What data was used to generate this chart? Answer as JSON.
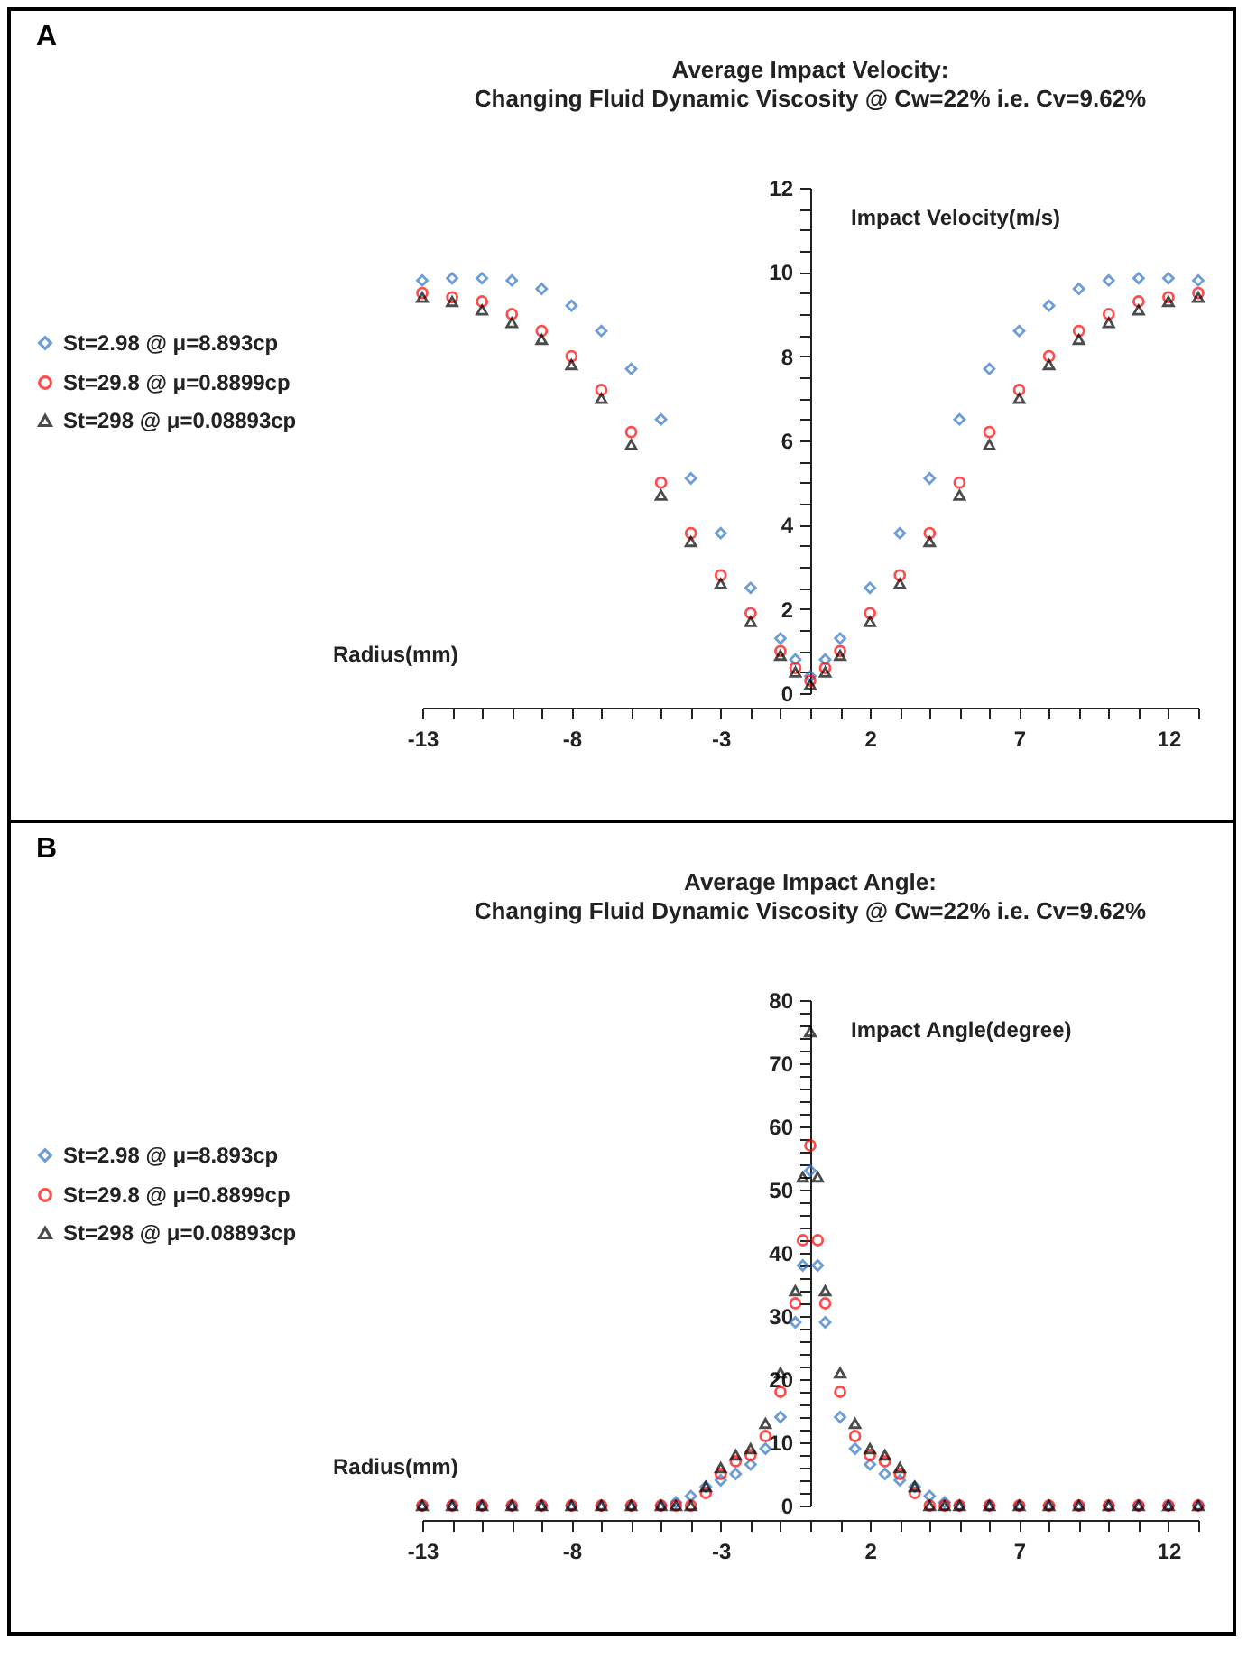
{
  "chart_data": [
    {
      "type": "scatter",
      "title": "Average Impact Velocity:",
      "subtitle": "Changing Fluid Dynamic Viscosity @ Cw=22% i.e. Cv=9.62%",
      "xlabel": "Radius(mm)",
      "ylabel": "Impact Velocity(m/s)",
      "annotations": [
        "A"
      ],
      "legend": "left",
      "x": [
        -13,
        -12,
        -11,
        -10,
        -9,
        -8,
        -7,
        -6,
        -5,
        -4,
        -3,
        -2,
        -1,
        -0.5,
        0,
        0.5,
        1,
        2,
        3,
        4,
        5,
        6,
        7,
        8,
        9,
        10,
        11,
        12,
        13
      ],
      "xlim": [
        -13,
        13
      ],
      "ylim": [
        0,
        12
      ],
      "xticks": [
        -13,
        {
          "value": -12,
          "label": null
        },
        {
          "value": -11,
          "label": null
        },
        {
          "value": -10,
          "label": null
        },
        {
          "value": -9,
          "label": null
        },
        -8,
        {
          "value": -7,
          "label": null
        },
        {
          "value": -6,
          "label": null
        },
        {
          "value": -5,
          "label": null
        },
        {
          "value": -4,
          "label": null
        },
        -3,
        {
          "value": -2,
          "label": null
        },
        {
          "value": -1,
          "label": null
        },
        {
          "value": 0,
          "label": null
        },
        {
          "value": 1,
          "label": null
        },
        2,
        {
          "value": 3,
          "label": null
        },
        {
          "value": 4,
          "label": null
        },
        {
          "value": 5,
          "label": null
        },
        {
          "value": 6,
          "label": null
        },
        7,
        {
          "value": 8,
          "label": null
        },
        {
          "value": 9,
          "label": null
        },
        {
          "value": 10,
          "label": null
        },
        {
          "value": 11,
          "label": null
        },
        12,
        {
          "value": 13,
          "label": null
        }
      ],
      "yticks": [
        0,
        {
          "value": 0.5,
          "label": null
        },
        {
          "value": 1,
          "label": null
        },
        {
          "value": 1.5,
          "label": null
        },
        2,
        {
          "value": 2.5,
          "label": null
        },
        {
          "value": 3,
          "label": null
        },
        {
          "value": 3.5,
          "label": null
        },
        4,
        {
          "value": 4.5,
          "label": null
        },
        {
          "value": 5,
          "label": null
        },
        {
          "value": 5.5,
          "label": null
        },
        6,
        {
          "value": 6.5,
          "label": null
        },
        {
          "value": 7,
          "label": null
        },
        {
          "value": 7.5,
          "label": null
        },
        8,
        {
          "value": 8.5,
          "label": null
        },
        {
          "value": 9,
          "label": null
        },
        {
          "value": 9.5,
          "label": null
        },
        10,
        {
          "value": 10.5,
          "label": null
        },
        {
          "value": 11,
          "label": null
        },
        {
          "value": 11.5,
          "label": null
        },
        12
      ],
      "series": [
        {
          "name": "St=2.98 @ μ=8.893cp",
          "color": "#2e75c6",
          "marker": "diamond",
          "values": [
            9.8,
            9.85,
            9.85,
            9.8,
            9.6,
            9.2,
            8.6,
            7.7,
            6.5,
            5.1,
            3.8,
            2.5,
            1.3,
            0.8,
            0.4,
            0.8,
            1.3,
            2.5,
            3.8,
            5.1,
            6.5,
            7.7,
            8.6,
            9.2,
            9.6,
            9.8,
            9.85,
            9.85,
            9.8
          ]
        },
        {
          "name": "St=29.8 @ μ=0.8899cp",
          "color": "#ff0000",
          "marker": "circle",
          "values": [
            9.5,
            9.4,
            9.3,
            9.0,
            8.6,
            8.0,
            7.2,
            6.2,
            5.0,
            3.8,
            2.8,
            1.9,
            1.0,
            0.6,
            0.3,
            0.6,
            1.0,
            1.9,
            2.8,
            3.8,
            5.0,
            6.2,
            7.2,
            8.0,
            8.6,
            9.0,
            9.3,
            9.4,
            9.5
          ]
        },
        {
          "name": "St=298 @ μ=0.08893cp",
          "color": "#000000",
          "marker": "triangle",
          "values": [
            9.4,
            9.3,
            9.1,
            8.8,
            8.4,
            7.8,
            7.0,
            5.9,
            4.7,
            3.6,
            2.6,
            1.7,
            0.9,
            0.5,
            0.2,
            0.5,
            0.9,
            1.7,
            2.6,
            3.6,
            4.7,
            5.9,
            7.0,
            7.8,
            8.4,
            8.8,
            9.1,
            9.3,
            9.4
          ]
        }
      ]
    },
    {
      "type": "scatter",
      "title": "Average Impact Angle:",
      "subtitle": "Changing Fluid Dynamic Viscosity @ Cw=22% i.e. Cv=9.62%",
      "xlabel": "Radius(mm)",
      "ylabel": "Impact Angle(degree)",
      "annotations": [
        "B"
      ],
      "legend": "left",
      "x": [
        -13,
        -12,
        -11,
        -10,
        -9,
        -8,
        -7,
        -6,
        -5,
        -4.5,
        -4,
        -3.5,
        -3,
        -2.5,
        -2,
        -1.5,
        -1,
        -0.5,
        -0.25,
        0,
        0.25,
        0.5,
        1,
        1.5,
        2,
        2.5,
        3,
        3.5,
        4,
        4.5,
        5,
        6,
        7,
        8,
        9,
        10,
        11,
        12,
        13
      ],
      "xlim": [
        -13,
        13
      ],
      "ylim": [
        0,
        80
      ],
      "xticks": [
        -13,
        {
          "value": -12,
          "label": null
        },
        {
          "value": -11,
          "label": null
        },
        {
          "value": -10,
          "label": null
        },
        {
          "value": -9,
          "label": null
        },
        -8,
        {
          "value": -7,
          "label": null
        },
        {
          "value": -6,
          "label": null
        },
        {
          "value": -5,
          "label": null
        },
        {
          "value": -4,
          "label": null
        },
        -3,
        {
          "value": -2,
          "label": null
        },
        {
          "value": -1,
          "label": null
        },
        {
          "value": 0,
          "label": null
        },
        {
          "value": 1,
          "label": null
        },
        2,
        {
          "value": 3,
          "label": null
        },
        {
          "value": 4,
          "label": null
        },
        {
          "value": 5,
          "label": null
        },
        {
          "value": 6,
          "label": null
        },
        7,
        {
          "value": 8,
          "label": null
        },
        {
          "value": 9,
          "label": null
        },
        {
          "value": 10,
          "label": null
        },
        {
          "value": 11,
          "label": null
        },
        12,
        {
          "value": 13,
          "label": null
        }
      ],
      "yticks": [
        0,
        {
          "value": 2,
          "label": null
        },
        {
          "value": 4,
          "label": null
        },
        {
          "value": 6,
          "label": null
        },
        {
          "value": 8,
          "label": null
        },
        10,
        {
          "value": 12,
          "label": null
        },
        {
          "value": 14,
          "label": null
        },
        {
          "value": 16,
          "label": null
        },
        {
          "value": 18,
          "label": null
        },
        20,
        {
          "value": 22,
          "label": null
        },
        {
          "value": 24,
          "label": null
        },
        {
          "value": 26,
          "label": null
        },
        {
          "value": 28,
          "label": null
        },
        30,
        {
          "value": 32,
          "label": null
        },
        {
          "value": 34,
          "label": null
        },
        {
          "value": 36,
          "label": null
        },
        {
          "value": 38,
          "label": null
        },
        40,
        {
          "value": 42,
          "label": null
        },
        {
          "value": 44,
          "label": null
        },
        {
          "value": 46,
          "label": null
        },
        {
          "value": 48,
          "label": null
        },
        50,
        {
          "value": 52,
          "label": null
        },
        {
          "value": 54,
          "label": null
        },
        {
          "value": 56,
          "label": null
        },
        {
          "value": 58,
          "label": null
        },
        60,
        {
          "value": 62,
          "label": null
        },
        {
          "value": 64,
          "label": null
        },
        {
          "value": 66,
          "label": null
        },
        {
          "value": 68,
          "label": null
        },
        70,
        {
          "value": 72,
          "label": null
        },
        {
          "value": 74,
          "label": null
        },
        {
          "value": 76,
          "label": null
        },
        {
          "value": 78,
          "label": null
        },
        80
      ],
      "series": [
        {
          "name": "St=2.98 @ μ=8.893cp",
          "color": "#2e75c6",
          "marker": "diamond",
          "values": [
            0,
            0,
            0,
            0,
            0,
            0,
            0,
            0,
            0,
            0.5,
            1.5,
            3,
            4,
            5,
            6.5,
            9,
            14,
            29,
            38,
            53,
            38,
            29,
            14,
            9,
            6.5,
            5,
            4,
            3,
            1.5,
            0.5,
            0,
            0,
            0,
            0,
            0,
            0,
            0,
            0,
            0
          ]
        },
        {
          "name": "St=29.8 @ μ=0.8899cp",
          "color": "#ff0000",
          "marker": "circle",
          "values": [
            0,
            0,
            0,
            0,
            0,
            0,
            0,
            0,
            0,
            0,
            0,
            2,
            5,
            7,
            8,
            11,
            18,
            32,
            42,
            57,
            42,
            32,
            18,
            11,
            8,
            7,
            5,
            2,
            0,
            0,
            0,
            0,
            0,
            0,
            0,
            0,
            0,
            0,
            0
          ]
        },
        {
          "name": "St=298 @ μ=0.08893cp",
          "color": "#000000",
          "marker": "triangle",
          "values": [
            0,
            0,
            0,
            0,
            0,
            0,
            0,
            0,
            0,
            0,
            0,
            3,
            6,
            8,
            9,
            13,
            21,
            34,
            52,
            75,
            52,
            34,
            21,
            13,
            9,
            8,
            6,
            3,
            0,
            0,
            0,
            0,
            0,
            0,
            0,
            0,
            0,
            0,
            0
          ]
        }
      ]
    }
  ]
}
